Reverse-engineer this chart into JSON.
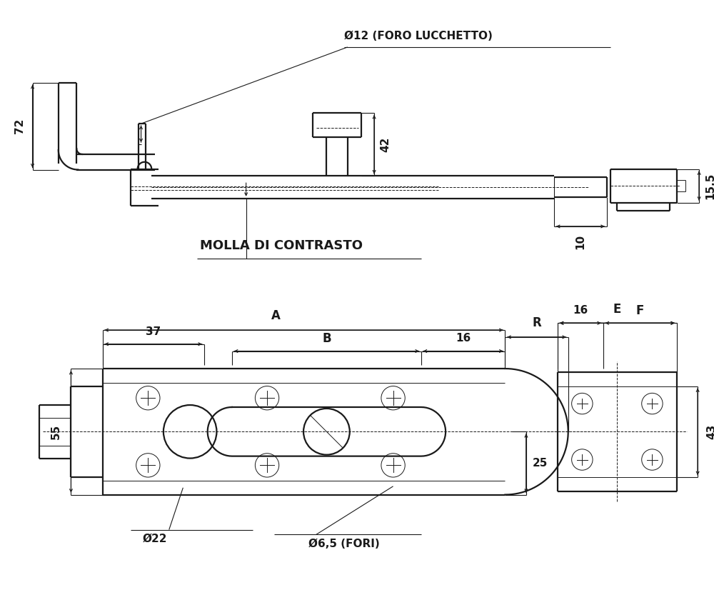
{
  "bg_color": "#ffffff",
  "line_color": "#1a1a1a",
  "lw_main": 1.6,
  "lw_thin": 0.7,
  "lw_dim": 0.8,
  "annotations": {
    "foro_lucchetto": "Ø12 (FORO LUCCHETTO)",
    "molla": "MOLLA DI CONTRASTO",
    "dim_72": "72",
    "dim_42": "42",
    "dim_10": "10",
    "dim_15_5": "15,5",
    "dim_A": "A",
    "dim_B": "B",
    "dim_R": "R",
    "dim_E": "E",
    "dim_F": "F",
    "dim_37": "37",
    "dim_16_top": "16",
    "dim_16_right": "16",
    "dim_55": "55",
    "dim_25": "25",
    "dim_43": "43",
    "dim_22": "Ø22",
    "dim_6_5": "Ø6,5 (FORI)"
  }
}
